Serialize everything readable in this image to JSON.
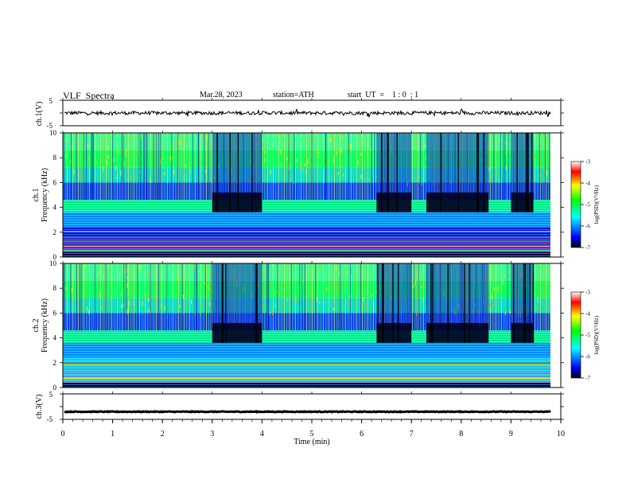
{
  "header": {
    "title": "VLF  Spectra",
    "date": "Mar.28, 2023",
    "station": "station=ATH",
    "start": "start  UT  =    1 : 0  : 1"
  },
  "chart_data": [
    {
      "type": "line",
      "id": "ch1-waveform",
      "ylabel": "ch.1(V)",
      "ylim": [
        -5,
        5
      ],
      "yticks": [
        "5",
        "-5"
      ],
      "xlim": [
        0,
        10
      ],
      "description_values": {
        "baseline": 0,
        "noise_amplitude": 0.7
      }
    },
    {
      "type": "heatmap",
      "id": "ch1-spectrogram",
      "ylabel": "ch.1\nFrequency  (kHz)",
      "ylabel_line1": "ch.1",
      "ylabel_line2": "Frequency  (kHz)",
      "ylim": [
        0,
        10
      ],
      "yticks": [
        "0",
        "2",
        "4",
        "6",
        "8",
        "10"
      ],
      "xlim": [
        0,
        9.8
      ],
      "quiet_intervals_min": [
        [
          3.0,
          4.0
        ],
        [
          6.3,
          7.0
        ],
        [
          7.3,
          8.55
        ],
        [
          9.0,
          9.45
        ]
      ],
      "colorbar": {
        "label": "log(PSD)(V²/Hz)",
        "range": [
          -7,
          -3
        ],
        "ticks": [
          "-3",
          "-4",
          "-5",
          "-6",
          "-7"
        ]
      }
    },
    {
      "type": "heatmap",
      "id": "ch2-spectrogram",
      "ylabel_line1": "ch.2",
      "ylabel_line2": "Frequency  (kHz)",
      "ylim": [
        0,
        10
      ],
      "yticks": [
        "0",
        "2",
        "4",
        "6",
        "8",
        "10"
      ],
      "xlim": [
        0,
        9.8
      ],
      "quiet_intervals_min": [
        [
          3.0,
          4.0
        ],
        [
          6.3,
          7.0
        ],
        [
          7.3,
          8.55
        ],
        [
          9.0,
          9.45
        ]
      ],
      "colorbar": {
        "label": "log(PSD)(V²/Hz)",
        "range": [
          -7,
          -3
        ],
        "ticks": [
          "-3",
          "-4",
          "-5",
          "-6",
          "-7"
        ]
      }
    },
    {
      "type": "line",
      "id": "ch3-waveform",
      "ylabel": "ch.3(V)",
      "ylim": [
        -5,
        5
      ],
      "yticks": [
        "5",
        "-5"
      ],
      "xlim": [
        0,
        10
      ],
      "description_values": {
        "baseline": -2,
        "noise_amplitude": 0.15
      }
    }
  ],
  "xaxis": {
    "label": "Time  (min)",
    "ticks": [
      "0",
      "1",
      "2",
      "3",
      "4",
      "5",
      "6",
      "7",
      "8",
      "9",
      "10"
    ],
    "range": [
      0,
      10
    ]
  },
  "colors": {
    "colormap": [
      "#000000",
      "#0000ff",
      "#00ffff",
      "#00ff00",
      "#ffff00",
      "#ff0000",
      "#ffffff"
    ]
  }
}
